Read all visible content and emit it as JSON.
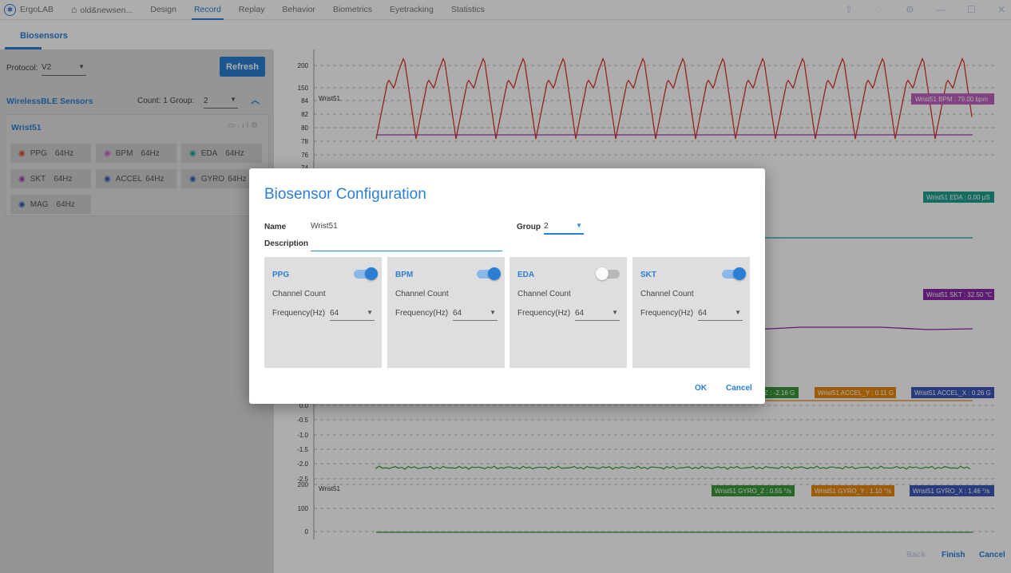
{
  "topbar": {
    "app_name": "ErgoLAB",
    "project": "old&newsen...",
    "tabs": [
      "Design",
      "Record",
      "Replay",
      "Behavior",
      "Biometrics",
      "Eyetracking",
      "Statistics"
    ],
    "active_tab": "Record"
  },
  "left": {
    "subtab": "Biosensors",
    "protocol_label": "Protocol:",
    "protocol_value": "V2",
    "refresh_label": "Refresh",
    "section_title": "WirelessBLE Sensors",
    "count_text": "Count:  1  Group:",
    "group_value": "2",
    "device_name": "Wrist51",
    "channels": [
      {
        "name": "PPG",
        "hz": "64Hz",
        "color": "#d9472b"
      },
      {
        "name": "BPM",
        "hz": "64Hz",
        "color": "#c060c0"
      },
      {
        "name": "EDA",
        "hz": "64Hz",
        "color": "#1f9f8f"
      },
      {
        "name": "SKT",
        "hz": "64Hz",
        "color": "#a040b0"
      },
      {
        "name": "ACCEL",
        "hz": "64Hz",
        "color": "#2e5aa8"
      },
      {
        "name": "GYRO",
        "hz": "64Hz",
        "color": "#2e5aa8"
      },
      {
        "name": "MAG",
        "hz": "64Hz",
        "color": "#2e5aa8"
      }
    ]
  },
  "chart": {
    "ppg_ticks": [
      "200",
      "150"
    ],
    "bpm_ticks": [
      "84",
      "82",
      "80",
      "78",
      "76",
      "74"
    ],
    "accel_ticks": [
      "0.0",
      "-0.5",
      "-1.0",
      "-1.5",
      "-2.0",
      "-2.5"
    ],
    "gyro_ticks": [
      "200",
      "100",
      "0"
    ],
    "device_label": "Wrist51",
    "badges": {
      "bpm": "Wrist51 BPM : 79.00 bpm",
      "eda": "Wrist51 EDA : 0.00 μS",
      "skt": "Wrist51 SKT : 32.50 ℃",
      "accel_z": "Z : -2.16 G",
      "accel_y": "Wrist51 ACCEL_Y : 0.11 G",
      "accel_x": "Wrist51 ACCEL_X : 0.26 G",
      "gyro_z": "Wrist51 GYRO_Z : 0.55 °/s",
      "gyro_y": "Wrist51 GYRO_Y : 1.10 °/s",
      "gyro_x": "Wrist51 GYRO_X : 1.46 °/s"
    },
    "colors": {
      "ppg": "#d9342b",
      "bpm": "#a040b0",
      "eda": "#1f9f8f",
      "skt": "#8a2aa8",
      "green": "#3a9a3a",
      "orange": "#e8880c",
      "blue": "#3b57b8"
    }
  },
  "bottom": {
    "back": "Back",
    "finish": "Finish",
    "cancel": "Cancel"
  },
  "modal": {
    "title": "Biosensor Configuration",
    "name_label": "Name",
    "name_value": "Wrist51",
    "group_label": "Group",
    "group_value": "2",
    "description_label": "Description",
    "description_value": "",
    "sensors": [
      {
        "name": "PPG",
        "enabled": true,
        "channel_label": "Channel Count",
        "freq_label": "Frequency(Hz)",
        "freq": "64"
      },
      {
        "name": "BPM",
        "enabled": true,
        "channel_label": "Channel Count",
        "freq_label": "Frequency(Hz)",
        "freq": "64"
      },
      {
        "name": "EDA",
        "enabled": false,
        "channel_label": "Channel Count",
        "freq_label": "Frequency(Hz)",
        "freq": "64"
      },
      {
        "name": "SKT",
        "enabled": true,
        "channel_label": "Channel Count",
        "freq_label": "Frequency(Hz)",
        "freq": "64"
      }
    ],
    "ok": "OK",
    "cancel": "Cancel"
  }
}
